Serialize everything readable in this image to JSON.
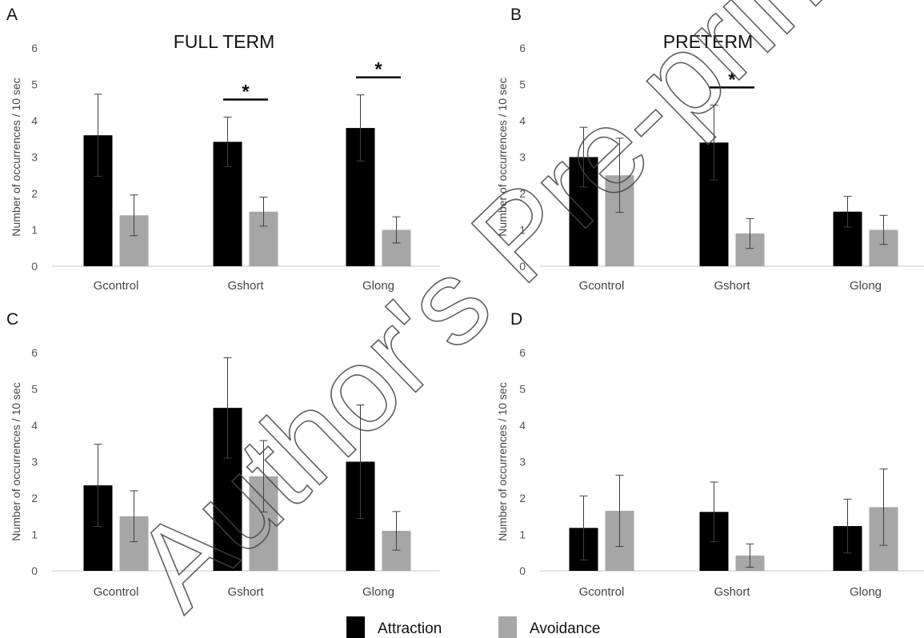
{
  "chart_data": [
    {
      "panel": "A",
      "title": "FULL TERM",
      "type": "bar",
      "ylabel": "Number of occurrences / 10 sec",
      "ylim": [
        0,
        6
      ],
      "yticks": [
        "0",
        "1",
        "2",
        "3",
        "4",
        "5",
        "6"
      ],
      "categories": [
        "Gcontrol",
        "Gshort",
        "Glong"
      ],
      "series": [
        {
          "name": "Attraction",
          "values": [
            3.6,
            3.42,
            3.8
          ],
          "errors": [
            1.13,
            0.68,
            0.91
          ]
        },
        {
          "name": "Avoidance",
          "values": [
            1.4,
            1.5,
            1.0
          ],
          "errors": [
            0.56,
            0.4,
            0.36
          ]
        }
      ],
      "significance": [
        {
          "category": "Gshort",
          "label": "*"
        },
        {
          "category": "Glong",
          "label": "*"
        }
      ]
    },
    {
      "panel": "B",
      "title": "PRETERM",
      "type": "bar",
      "ylabel": "Number of occurrences / 10 sec",
      "ylim": [
        0,
        6
      ],
      "yticks": [
        "0",
        "1",
        "2",
        "3",
        "4",
        "5",
        "6"
      ],
      "categories": [
        "Gcontrol",
        "Gshort",
        "Glong"
      ],
      "series": [
        {
          "name": "Attraction",
          "values": [
            3.0,
            3.4,
            1.5
          ],
          "errors": [
            0.82,
            1.03,
            0.42
          ]
        },
        {
          "name": "Avoidance",
          "values": [
            2.5,
            0.9,
            1.0
          ],
          "errors": [
            1.02,
            0.41,
            0.4
          ]
        }
      ],
      "significance": [
        {
          "category": "Gshort",
          "label": "*"
        }
      ]
    },
    {
      "panel": "C",
      "title": "",
      "type": "bar",
      "ylabel": "Number of occurrences / 10 sec",
      "ylim": [
        0,
        6
      ],
      "yticks": [
        "0",
        "1",
        "2",
        "3",
        "4",
        "5",
        "6"
      ],
      "categories": [
        "Gcontrol",
        "Gshort",
        "Glong"
      ],
      "series": [
        {
          "name": "Attraction",
          "values": [
            2.35,
            4.48,
            3.0
          ],
          "errors": [
            1.13,
            1.38,
            1.56
          ]
        },
        {
          "name": "Avoidance",
          "values": [
            1.5,
            2.6,
            1.1
          ],
          "errors": [
            0.7,
            0.98,
            0.53
          ]
        }
      ],
      "significance": []
    },
    {
      "panel": "D",
      "title": "",
      "type": "bar",
      "ylabel": "Number of occurrences / 10 sec",
      "ylim": [
        0,
        6
      ],
      "yticks": [
        "0",
        "1",
        "2",
        "3",
        "4",
        "5",
        "6"
      ],
      "categories": [
        "Gcontrol",
        "Gshort",
        "Glong"
      ],
      "series": [
        {
          "name": "Attraction",
          "values": [
            1.18,
            1.62,
            1.23
          ],
          "errors": [
            0.88,
            0.82,
            0.74
          ]
        },
        {
          "name": "Avoidance",
          "values": [
            1.65,
            0.42,
            1.75
          ],
          "errors": [
            0.98,
            0.32,
            1.05
          ]
        }
      ],
      "significance": []
    }
  ],
  "legend": {
    "placement": "bottom-center",
    "items": [
      {
        "label": "Attraction",
        "color": "#000000"
      },
      {
        "label": "Avoidance",
        "color": "#a6a6a6"
      }
    ]
  },
  "colors": {
    "attraction": "#000000",
    "avoidance": "#a6a6a6",
    "axis": "#d9d9d9",
    "error_bar": "#404040"
  },
  "watermark": "Author's Pre-print"
}
